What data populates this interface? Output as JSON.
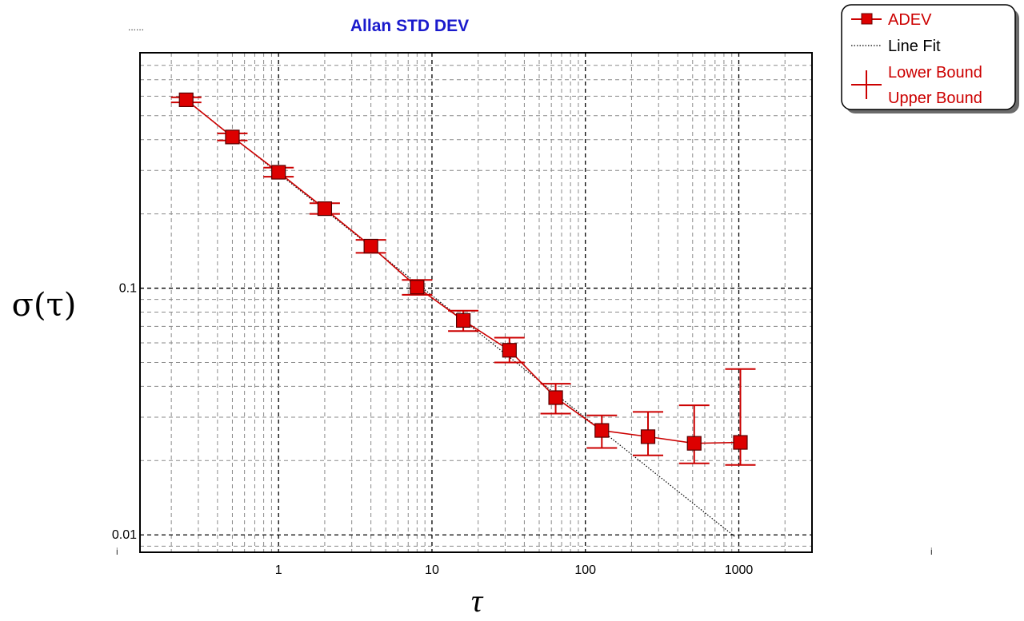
{
  "chart_data": {
    "type": "scatter",
    "title": "Allan STD DEV",
    "xlabel": "τ",
    "ylabel": "σ(τ)",
    "x_scale": "log",
    "y_scale": "log",
    "xlim": [
      0.125,
      3000
    ],
    "ylim": [
      0.0085,
      0.9
    ],
    "x_ticks": [
      {
        "value": 1,
        "label": "1"
      },
      {
        "value": 10,
        "label": "10"
      },
      {
        "value": 100,
        "label": "100"
      },
      {
        "value": 1000,
        "label": "1000"
      }
    ],
    "y_ticks": [
      {
        "value": 0.01,
        "label": "0.01"
      },
      {
        "value": 0.1,
        "label": "0.1"
      }
    ],
    "grid": true,
    "legend_position": "top-right, outside plot",
    "series": [
      {
        "name": "ADEV",
        "color": "#cc0000",
        "x": [
          0.25,
          0.5,
          1,
          2,
          4,
          8,
          16,
          32,
          64,
          128,
          256,
          512,
          1024
        ],
        "y": [
          0.58,
          0.41,
          0.295,
          0.21,
          0.148,
          0.101,
          0.074,
          0.056,
          0.036,
          0.0265,
          0.025,
          0.0235,
          0.0237
        ]
      },
      {
        "name": "Line Fit",
        "color": "#000000",
        "x": [
          0.25,
          950
        ],
        "y": [
          0.58,
          0.0098
        ]
      },
      {
        "name": "Lower Bound",
        "color": "#cc0000",
        "x": [
          0.25,
          0.5,
          1,
          2,
          4,
          8,
          16,
          32,
          64,
          128,
          256,
          512,
          1024
        ],
        "y": [
          0.566,
          0.397,
          0.283,
          0.2,
          0.139,
          0.094,
          0.067,
          0.05,
          0.031,
          0.0225,
          0.021,
          0.0195,
          0.0192
        ]
      },
      {
        "name": "Upper Bound",
        "color": "#cc0000",
        "x": [
          0.25,
          0.5,
          1,
          2,
          4,
          8,
          16,
          32,
          64,
          128,
          256,
          512,
          1024
        ],
        "y": [
          0.594,
          0.424,
          0.308,
          0.221,
          0.157,
          0.108,
          0.081,
          0.063,
          0.041,
          0.0305,
          0.0315,
          0.0335,
          0.047
        ]
      }
    ],
    "corner_marks": {
      "left": "i",
      "right": "i",
      "top_left": "......"
    }
  },
  "legend": {
    "items": [
      {
        "label": "ADEV",
        "color": "#cc0000"
      },
      {
        "label": "Line Fit",
        "color": "#000000"
      },
      {
        "label": "Lower Bound",
        "color": "#cc0000"
      },
      {
        "label": "Upper Bound",
        "color": "#cc0000"
      }
    ]
  }
}
